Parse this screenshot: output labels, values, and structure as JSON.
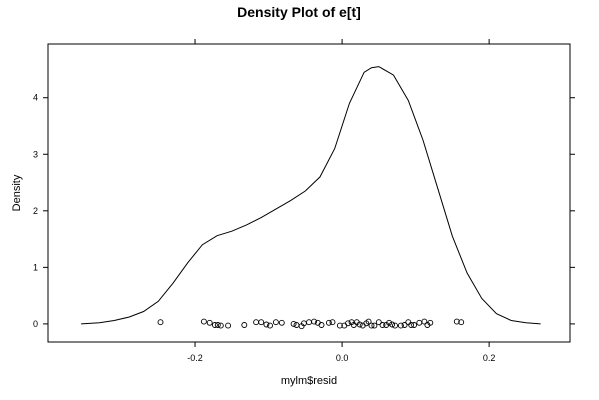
{
  "chart_data": {
    "type": "line",
    "title": "Density Plot of e[t]",
    "xlabel": "mylm$resid",
    "ylabel": "Density",
    "xlim": [
      -0.4,
      0.31
    ],
    "ylim": [
      -0.32,
      4.95
    ],
    "x_ticks": [
      -0.2,
      0.0,
      0.2
    ],
    "x_tick_labels": [
      "-0.2",
      "0.0",
      "0.2"
    ],
    "y_ticks": [
      0,
      1,
      2,
      3,
      4
    ],
    "y_tick_labels": [
      "0",
      "1",
      "2",
      "3",
      "4"
    ],
    "grid": false,
    "legend": "none",
    "line_color": "#000000",
    "density": {
      "x": [
        -0.355,
        -0.33,
        -0.31,
        -0.29,
        -0.27,
        -0.25,
        -0.23,
        -0.21,
        -0.19,
        -0.17,
        -0.15,
        -0.13,
        -0.11,
        -0.09,
        -0.07,
        -0.05,
        -0.03,
        -0.01,
        0.01,
        0.03,
        0.04,
        0.05,
        0.07,
        0.09,
        0.11,
        0.13,
        0.15,
        0.17,
        0.19,
        0.21,
        0.23,
        0.25,
        0.27
      ],
      "y": [
        0.0,
        0.02,
        0.06,
        0.12,
        0.22,
        0.4,
        0.72,
        1.08,
        1.4,
        1.56,
        1.64,
        1.75,
        1.88,
        2.03,
        2.18,
        2.35,
        2.6,
        3.1,
        3.9,
        4.45,
        4.53,
        4.55,
        4.4,
        3.95,
        3.25,
        2.4,
        1.55,
        0.9,
        0.45,
        0.18,
        0.06,
        0.02,
        0.0
      ]
    },
    "rug": {
      "x": [
        -0.247,
        -0.188,
        -0.18,
        -0.173,
        -0.169,
        -0.165,
        -0.155,
        -0.133,
        -0.117,
        -0.11,
        -0.103,
        -0.098,
        -0.09,
        -0.082,
        -0.066,
        -0.062,
        -0.055,
        -0.052,
        -0.045,
        -0.038,
        -0.033,
        -0.028,
        -0.018,
        -0.013,
        -0.003,
        0.003,
        0.008,
        0.013,
        0.016,
        0.02,
        0.024,
        0.028,
        0.033,
        0.036,
        0.04,
        0.044,
        0.05,
        0.055,
        0.06,
        0.064,
        0.068,
        0.072,
        0.08,
        0.085,
        0.09,
        0.094,
        0.098,
        0.105,
        0.112,
        0.116,
        0.12,
        0.156,
        0.162
      ],
      "y": [
        0.03,
        0.04,
        0.02,
        -0.02,
        -0.02,
        -0.03,
        -0.03,
        -0.02,
        0.03,
        0.03,
        -0.01,
        -0.03,
        0.03,
        0.02,
        0.0,
        -0.02,
        -0.04,
        0.01,
        0.03,
        0.04,
        0.02,
        -0.02,
        0.02,
        0.03,
        -0.03,
        -0.03,
        0.01,
        0.03,
        -0.02,
        0.03,
        -0.01,
        -0.03,
        0.01,
        0.04,
        -0.03,
        -0.03,
        0.03,
        -0.02,
        -0.02,
        0.02,
        -0.01,
        -0.03,
        -0.03,
        -0.02,
        0.03,
        -0.02,
        -0.02,
        0.02,
        0.04,
        -0.02,
        0.02,
        0.04,
        0.03
      ]
    }
  }
}
